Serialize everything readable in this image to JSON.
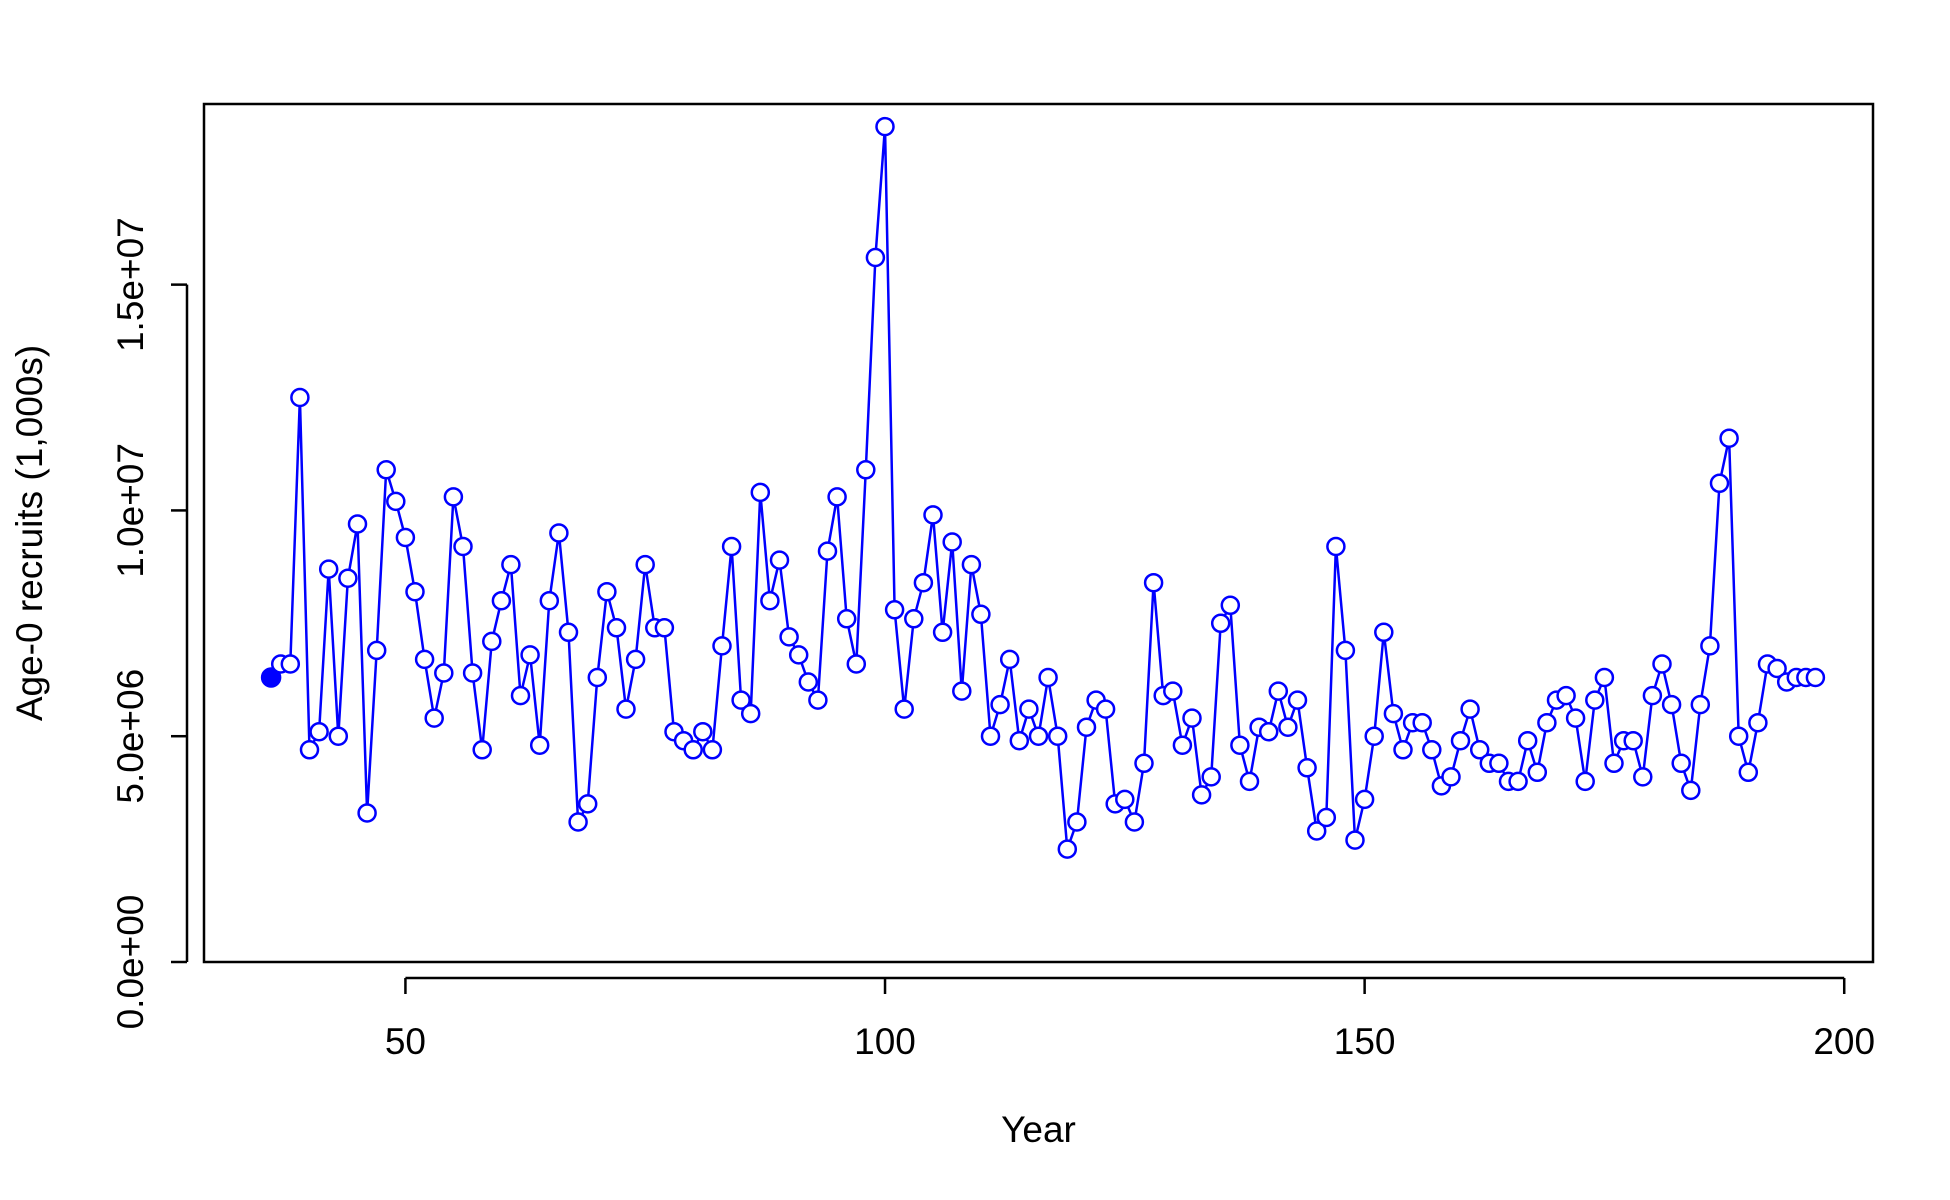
{
  "chart_data": {
    "type": "line",
    "title": "",
    "xlabel": "Year",
    "ylabel": "Age-0 recruits (1,000s)",
    "xlim": [
      29,
      203
    ],
    "ylim": [
      0,
      19000000
    ],
    "x_ticks": [
      50,
      100,
      150,
      200
    ],
    "x_tick_labels": [
      "50",
      "100",
      "150",
      "200"
    ],
    "y_ticks": [
      0,
      5000000,
      10000000,
      15000000
    ],
    "y_tick_labels": [
      "0.0e+00",
      "5.0e+06",
      "1.0e+07",
      "1.5e+07"
    ],
    "grid": false,
    "legend": "none",
    "colors": {
      "series": "#0000FF",
      "axis": "#000000",
      "background": "#FFFFFF"
    },
    "markers": {
      "first_point": "filled-circle",
      "other_points": "open-circle"
    },
    "series": [
      {
        "x": [
          36,
          37,
          38,
          39,
          40,
          41,
          42,
          43,
          44,
          45,
          46,
          47,
          48,
          49,
          50,
          51,
          52,
          53,
          54,
          55,
          56,
          57,
          58,
          59,
          60,
          61,
          62,
          63,
          64,
          65,
          66,
          67,
          68,
          69,
          70,
          71,
          72,
          73,
          74,
          75,
          76,
          77,
          78,
          79,
          80,
          81,
          82,
          83,
          84,
          85,
          86,
          87,
          88,
          89,
          90,
          91,
          92,
          93,
          94,
          95,
          96,
          97,
          98,
          99,
          100,
          101,
          102,
          103,
          104,
          105,
          106,
          107,
          108,
          109,
          110,
          111,
          112,
          113,
          114,
          115,
          116,
          117,
          118,
          119,
          120,
          121,
          122,
          123,
          124,
          125,
          126,
          127,
          128,
          129,
          130,
          131,
          132,
          133,
          134,
          135,
          136,
          137,
          138,
          139,
          140,
          141,
          142,
          143,
          144,
          145,
          146,
          147,
          148,
          149,
          150,
          151,
          152,
          153,
          154,
          155,
          156,
          157,
          158,
          159,
          160,
          161,
          162,
          163,
          164,
          165,
          166,
          167,
          168,
          169,
          170,
          171,
          172,
          173,
          174,
          175,
          176,
          177,
          178,
          179,
          180,
          181,
          182,
          183,
          184,
          185,
          186,
          187,
          188,
          189,
          190,
          191,
          192,
          193,
          194,
          195,
          196,
          197
        ],
        "y": [
          6300000,
          6600000,
          6600000,
          12500000,
          4700000,
          5100000,
          8700000,
          5000000,
          8500000,
          9700000,
          3300000,
          6900000,
          10900000,
          10200000,
          9400000,
          8200000,
          6700000,
          5400000,
          6400000,
          10300000,
          9200000,
          6400000,
          4700000,
          7100000,
          8000000,
          8800000,
          5900000,
          6800000,
          4800000,
          8000000,
          9500000,
          7300000,
          3100000,
          3500000,
          6300000,
          8200000,
          7400000,
          5600000,
          6700000,
          8800000,
          7400000,
          7400000,
          5100000,
          4900000,
          4700000,
          5100000,
          4700000,
          7000000,
          9200000,
          5800000,
          5500000,
          10400000,
          8000000,
          8900000,
          7200000,
          6800000,
          6200000,
          5800000,
          9100000,
          10300000,
          7600000,
          6600000,
          10900000,
          15600000,
          18500000,
          7800000,
          5600000,
          7600000,
          8400000,
          9900000,
          7300000,
          9300000,
          6000000,
          8800000,
          7700000,
          5000000,
          5700000,
          6700000,
          4900000,
          5600000,
          5000000,
          6300000,
          5000000,
          2500000,
          3100000,
          5200000,
          5800000,
          5600000,
          3500000,
          3600000,
          3100000,
          4400000,
          8400000,
          5900000,
          6000000,
          4800000,
          5400000,
          3700000,
          4100000,
          7500000,
          7900000,
          4800000,
          4000000,
          5200000,
          5100000,
          6000000,
          5200000,
          5800000,
          4300000,
          2900000,
          3200000,
          9200000,
          6900000,
          2700000,
          3600000,
          5000000,
          7300000,
          5500000,
          4700000,
          5300000,
          5300000,
          4700000,
          3900000,
          4100000,
          4900000,
          5600000,
          4700000,
          4400000,
          4400000,
          4000000,
          4000000,
          4900000,
          4200000,
          5300000,
          5800000,
          5900000,
          5400000,
          4000000,
          5800000,
          6300000,
          4400000,
          4900000,
          4900000,
          4100000,
          5900000,
          6600000,
          5700000,
          4400000,
          3800000,
          5700000,
          7000000,
          10600000,
          11600000,
          5000000,
          4200000,
          5300000,
          6600000,
          6500000,
          6200000,
          6300000,
          6300000,
          6300000
        ]
      }
    ]
  }
}
